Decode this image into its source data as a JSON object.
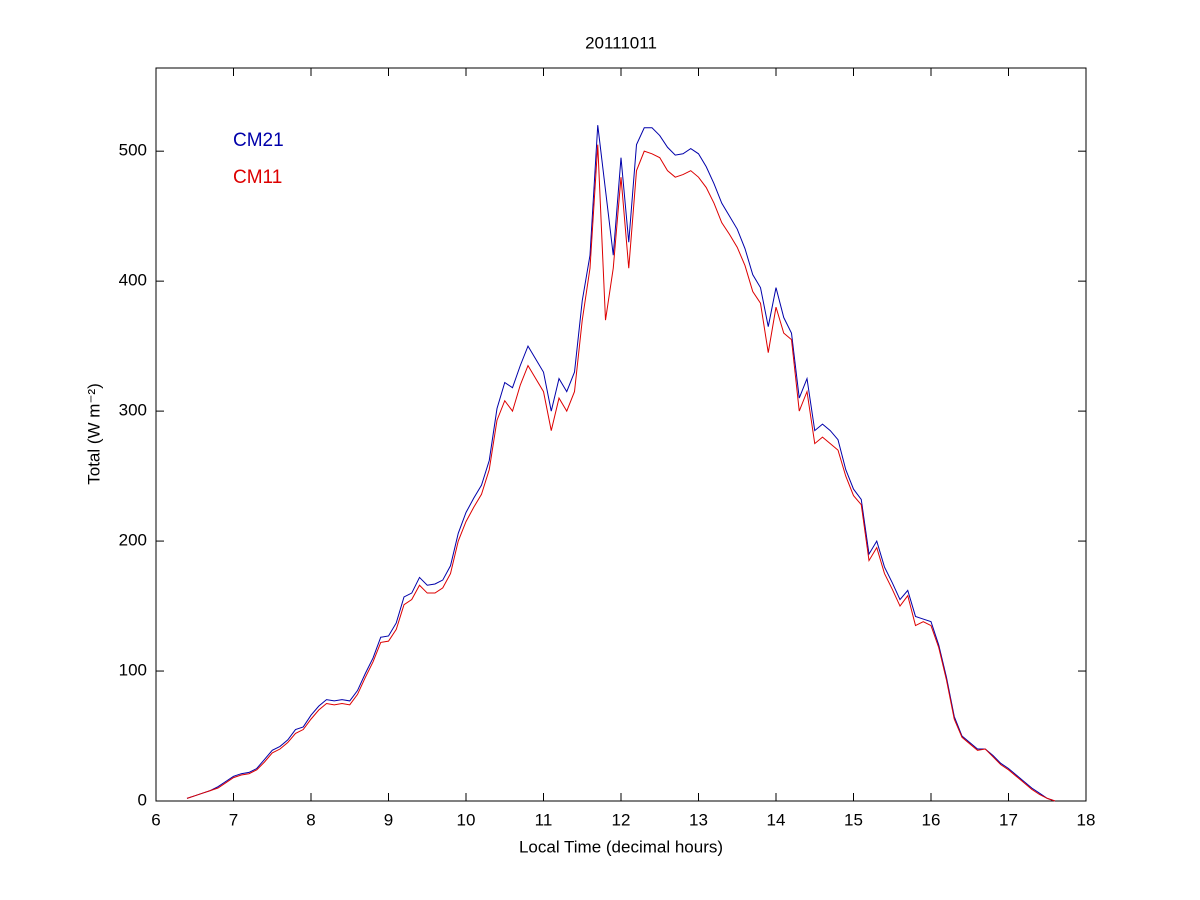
{
  "chart_data": {
    "type": "line",
    "title": "20111011",
    "xlabel": "Local Time (decimal hours)",
    "ylabel": "Total (W m⁻²)",
    "xlim": [
      6,
      18
    ],
    "ylim": [
      0,
      564
    ],
    "xticks": [
      6,
      7,
      8,
      9,
      10,
      11,
      12,
      13,
      14,
      15,
      16,
      17,
      18
    ],
    "yticks": [
      0,
      100,
      200,
      300,
      400,
      500
    ],
    "legend": "upper left",
    "grid": false,
    "x": [
      6.4,
      6.5,
      6.6,
      6.7,
      6.8,
      6.9,
      7.0,
      7.1,
      7.2,
      7.3,
      7.4,
      7.5,
      7.6,
      7.7,
      7.8,
      7.9,
      8.0,
      8.1,
      8.2,
      8.3,
      8.4,
      8.5,
      8.6,
      8.7,
      8.8,
      8.9,
      9.0,
      9.1,
      9.2,
      9.3,
      9.4,
      9.5,
      9.6,
      9.7,
      9.8,
      9.9,
      10.0,
      10.1,
      10.2,
      10.3,
      10.4,
      10.5,
      10.6,
      10.7,
      10.8,
      10.9,
      11.0,
      11.1,
      11.2,
      11.3,
      11.4,
      11.5,
      11.6,
      11.7,
      11.8,
      11.9,
      12.0,
      12.1,
      12.2,
      12.3,
      12.4,
      12.5,
      12.6,
      12.7,
      12.8,
      12.9,
      13.0,
      13.1,
      13.2,
      13.3,
      13.4,
      13.5,
      13.6,
      13.7,
      13.8,
      13.9,
      14.0,
      14.1,
      14.2,
      14.3,
      14.4,
      14.5,
      14.6,
      14.7,
      14.8,
      14.9,
      15.0,
      15.1,
      15.2,
      15.3,
      15.4,
      15.5,
      15.6,
      15.7,
      15.8,
      15.9,
      16.0,
      16.1,
      16.2,
      16.3,
      16.4,
      16.5,
      16.6,
      16.7,
      16.8,
      16.9,
      17.0,
      17.1,
      17.2,
      17.3,
      17.4,
      17.5,
      17.6
    ],
    "series": [
      {
        "name": "CM21",
        "color": "#0000aa",
        "values": [
          2,
          4,
          6,
          8,
          11,
          15,
          19,
          21,
          22,
          25,
          32,
          39,
          42,
          47,
          55,
          57,
          66,
          73,
          78,
          77,
          78,
          77,
          85,
          98,
          110,
          126,
          127,
          137,
          157,
          160,
          172,
          166,
          167,
          170,
          181,
          206,
          222,
          233,
          243,
          262,
          302,
          322,
          318,
          335,
          350,
          340,
          330,
          300,
          325,
          315,
          330,
          385,
          420,
          520,
          470,
          420,
          495,
          430,
          505,
          518,
          518,
          512,
          503,
          497,
          498,
          502,
          498,
          488,
          475,
          460,
          450,
          440,
          425,
          405,
          395,
          365,
          395,
          372,
          360,
          310,
          325,
          285,
          290,
          285,
          278,
          255,
          240,
          232,
          190,
          200,
          180,
          168,
          155,
          162,
          142,
          140,
          138,
          120,
          95,
          65,
          50,
          45,
          40,
          40,
          35,
          29,
          25,
          20,
          15,
          10,
          6,
          2,
          0
        ]
      },
      {
        "name": "CM11",
        "color": "#dd0000",
        "values": [
          2,
          4,
          6,
          8,
          10,
          14,
          18,
          20,
          21,
          24,
          30,
          37,
          40,
          45,
          52,
          55,
          63,
          70,
          75,
          74,
          75,
          74,
          82,
          95,
          107,
          122,
          123,
          132,
          151,
          155,
          166,
          160,
          160,
          164,
          175,
          200,
          215,
          226,
          236,
          255,
          293,
          308,
          300,
          320,
          335,
          325,
          315,
          285,
          310,
          300,
          315,
          370,
          410,
          505,
          370,
          410,
          480,
          410,
          485,
          500,
          498,
          495,
          485,
          480,
          482,
          485,
          480,
          472,
          460,
          445,
          436,
          426,
          412,
          392,
          383,
          345,
          380,
          360,
          355,
          300,
          315,
          275,
          280,
          275,
          270,
          250,
          235,
          228,
          185,
          195,
          175,
          163,
          150,
          158,
          135,
          138,
          135,
          118,
          93,
          63,
          49,
          44,
          39,
          40,
          34,
          28,
          24,
          19,
          14,
          9,
          5,
          2,
          0
        ]
      }
    ]
  }
}
